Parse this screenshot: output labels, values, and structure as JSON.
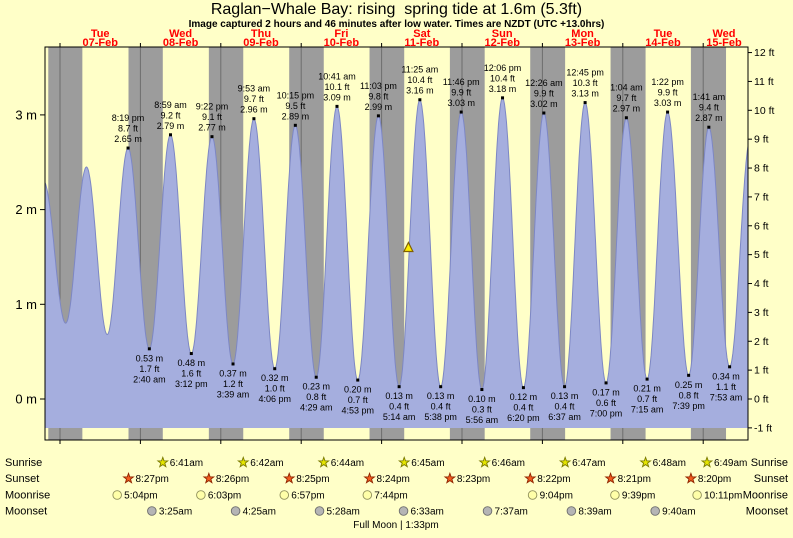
{
  "header": {
    "title": "Raglan−Whale Bay: rising  spring tide at 1.6m (5.3ft)",
    "subtitle": "Image captured 2 hours and 46 minutes after low water. Times are NZDT (UTC +13.0hrs)"
  },
  "colors": {
    "page_bg": "#ffffc8",
    "night_band": "#9c9c9c",
    "tide_fill": "#a5aede",
    "tide_edge": "#7d87c4",
    "day_label": "#ff0000",
    "plot_border": "#000000",
    "marker_fill": "#ffee00",
    "marker_stroke": "#806000"
  },
  "chart_data": {
    "type": "area",
    "title": "Raglan−Whale Bay tide height curve",
    "x_axis": {
      "days": [
        {
          "label": "Tue",
          "date": "07-Feb"
        },
        {
          "label": "Wed",
          "date": "08-Feb"
        },
        {
          "label": "Thu",
          "date": "09-Feb"
        },
        {
          "label": "Fri",
          "date": "10-Feb"
        },
        {
          "label": "Sat",
          "date": "11-Feb"
        },
        {
          "label": "Sun",
          "date": "12-Feb"
        },
        {
          "label": "Mon",
          "date": "13-Feb"
        },
        {
          "label": "Tue",
          "date": "14-Feb"
        },
        {
          "label": "Wed",
          "date": "15-Feb"
        }
      ]
    },
    "y_axis_left": {
      "unit": "m",
      "ticks": [
        0,
        1,
        2,
        3
      ]
    },
    "y_axis_right": {
      "unit": "ft",
      "ticks": [
        -1,
        0,
        1,
        2,
        3,
        4,
        5,
        6,
        7,
        8,
        9,
        10,
        11,
        12
      ]
    },
    "night_bands": [
      [
        -3.5,
        6.67
      ],
      [
        20.45,
        30.683
      ],
      [
        44.433,
        54.7
      ],
      [
        68.417,
        78.733
      ],
      [
        92.4,
        102.75
      ],
      [
        116.383,
        126.767
      ],
      [
        140.367,
        150.783
      ],
      [
        164.35,
        174.8
      ],
      [
        188.333,
        198.817
      ]
    ],
    "current_marker": {
      "t": 104,
      "height_m": 1.6
    },
    "tide_events": [
      {
        "kind": "high",
        "t": -4.9,
        "m": 2.3
      },
      {
        "kind": "low",
        "t": 1.7,
        "m": 0.8
      },
      {
        "kind": "high",
        "t": 7.9,
        "m": 2.45
      },
      {
        "kind": "low",
        "t": 14.1,
        "m": 0.68
      },
      {
        "kind": "high",
        "t": 20.317,
        "m": 2.65,
        "labels": [
          "8:19 pm",
          "8.7 ft",
          "2.65 m"
        ]
      },
      {
        "kind": "low",
        "t": 26.667,
        "m": 0.53,
        "labels": [
          "0.53 m",
          "1.7 ft",
          "2:40 am"
        ]
      },
      {
        "kind": "high",
        "t": 32.983,
        "m": 2.79,
        "labels": [
          "8:59 am",
          "9.2 ft",
          "2.79 m"
        ]
      },
      {
        "kind": "low",
        "t": 39.2,
        "m": 0.48,
        "labels": [
          "0.48 m",
          "1.6 ft",
          "3:12 pm"
        ]
      },
      {
        "kind": "high",
        "t": 45.367,
        "m": 2.77,
        "labels": [
          "9:22 pm",
          "9.1 ft",
          "2.77 m"
        ]
      },
      {
        "kind": "low",
        "t": 51.65,
        "m": 0.37,
        "labels": [
          "0.37 m",
          "1.2 ft",
          "3:39 am"
        ]
      },
      {
        "kind": "high",
        "t": 57.883,
        "m": 2.96,
        "labels": [
          "9:53 am",
          "9.7 ft",
          "2.96 m"
        ]
      },
      {
        "kind": "low",
        "t": 64.1,
        "m": 0.32,
        "labels": [
          "0.32 m",
          "1.0 ft",
          "4:06 pm"
        ]
      },
      {
        "kind": "high",
        "t": 70.25,
        "m": 2.89,
        "labels": [
          "10:15 pm",
          "9.5 ft",
          "2.89 m"
        ]
      },
      {
        "kind": "low",
        "t": 76.483,
        "m": 0.23,
        "labels": [
          "0.23 m",
          "0.8 ft",
          "4:29 am"
        ]
      },
      {
        "kind": "high",
        "t": 82.683,
        "m": 3.09,
        "labels": [
          "10:41 am",
          "10.1 ft",
          "3.09 m"
        ]
      },
      {
        "kind": "low",
        "t": 88.883,
        "m": 0.2,
        "labels": [
          "0.20 m",
          "0.7 ft",
          "4:53 pm"
        ]
      },
      {
        "kind": "high",
        "t": 95.05,
        "m": 2.99,
        "labels": [
          "11:03 pm",
          "9.8 ft",
          "2.99 m"
        ]
      },
      {
        "kind": "low",
        "t": 101.233,
        "m": 0.13,
        "labels": [
          "0.13 m",
          "0.4 ft",
          "5:14 am"
        ]
      },
      {
        "kind": "high",
        "t": 107.417,
        "m": 3.16,
        "labels": [
          "11:25 am",
          "10.4 ft",
          "3.16 m"
        ]
      },
      {
        "kind": "low",
        "t": 113.633,
        "m": 0.13,
        "labels": [
          "0.13 m",
          "0.4 ft",
          "5:38 pm"
        ]
      },
      {
        "kind": "high",
        "t": 119.767,
        "m": 3.03,
        "labels": [
          "11:46 pm",
          "9.9 ft",
          "3.03 m"
        ]
      },
      {
        "kind": "low",
        "t": 125.933,
        "m": 0.1,
        "labels": [
          "0.10 m",
          "0.3 ft",
          "5:56 am"
        ]
      },
      {
        "kind": "high",
        "t": 132.1,
        "m": 3.18,
        "labels": [
          "12:06 pm",
          "10.4 ft",
          "3.18 m"
        ]
      },
      {
        "kind": "low",
        "t": 138.333,
        "m": 0.12,
        "labels": [
          "0.12 m",
          "0.4 ft",
          "6:20 pm"
        ]
      },
      {
        "kind": "high",
        "t": 144.433,
        "m": 3.02,
        "labels": [
          "12:26 am",
          "9.9 ft",
          "3.02 m"
        ]
      },
      {
        "kind": "low",
        "t": 150.617,
        "m": 0.13,
        "labels": [
          "0.13 m",
          "0.4 ft",
          "6:37 am"
        ]
      },
      {
        "kind": "high",
        "t": 156.75,
        "m": 3.13,
        "labels": [
          "12:45 pm",
          "10.3 ft",
          "3.13 m"
        ]
      },
      {
        "kind": "low",
        "t": 163.0,
        "m": 0.17,
        "labels": [
          "0.17 m",
          "0.6 ft",
          "7:00 pm"
        ]
      },
      {
        "kind": "high",
        "t": 169.067,
        "m": 2.97,
        "labels": [
          "1:04 am",
          "9.7 ft",
          "2.97 m"
        ]
      },
      {
        "kind": "low",
        "t": 175.25,
        "m": 0.21,
        "labels": [
          "0.21 m",
          "0.7 ft",
          "7:15 am"
        ]
      },
      {
        "kind": "high",
        "t": 181.367,
        "m": 3.03,
        "labels": [
          "1:22 pm",
          "9.9 ft",
          "3.03 m"
        ]
      },
      {
        "kind": "low",
        "t": 187.65,
        "m": 0.25,
        "labels": [
          "0.25 m",
          "0.8 ft",
          "7:39 pm"
        ]
      },
      {
        "kind": "high",
        "t": 193.683,
        "m": 2.87,
        "labels": [
          "1:41 am",
          "9.4 ft",
          "2.87 m"
        ]
      },
      {
        "kind": "low",
        "t": 199.883,
        "m": 0.34,
        "labels": [
          "0.34 m",
          "1.1 ft",
          "7:53 am"
        ]
      },
      {
        "kind": "high",
        "t": 206.1,
        "m": 2.75
      }
    ]
  },
  "astro": {
    "rows": [
      {
        "id": "sunrise",
        "label": "Sunrise",
        "icon": "star",
        "fill": "#e6e600",
        "stroke": "#7a7a00",
        "entries": [
          {
            "t": 30.683,
            "time": "6:41am"
          },
          {
            "t": 54.7,
            "time": "6:42am"
          },
          {
            "t": 78.733,
            "time": "6:44am"
          },
          {
            "t": 102.75,
            "time": "6:45am"
          },
          {
            "t": 126.767,
            "time": "6:46am"
          },
          {
            "t": 150.783,
            "time": "6:47am"
          },
          {
            "t": 174.8,
            "time": "6:48am"
          },
          {
            "t": 198.817,
            "time": "6:49am"
          }
        ]
      },
      {
        "id": "sunset",
        "label": "Sunset",
        "icon": "star",
        "fill": "#f25c1e",
        "stroke": "#8f2500",
        "entries": [
          {
            "t": 20.45,
            "time": "8:27pm"
          },
          {
            "t": 44.433,
            "time": "8:26pm"
          },
          {
            "t": 68.417,
            "time": "8:25pm"
          },
          {
            "t": 92.4,
            "time": "8:24pm"
          },
          {
            "t": 116.383,
            "time": "8:23pm"
          },
          {
            "t": 140.367,
            "time": "8:22pm"
          },
          {
            "t": 164.35,
            "time": "8:21pm"
          },
          {
            "t": 188.333,
            "time": "8:20pm"
          }
        ]
      },
      {
        "id": "moonrise",
        "label": "Moonrise",
        "icon": "circle",
        "fill": "#ffffa8",
        "stroke": "#8f8f5a",
        "entries": [
          {
            "t": 17.067,
            "time": "5:04pm"
          },
          {
            "t": 42.05,
            "time": "6:03pm"
          },
          {
            "t": 66.95,
            "time": "6:57pm"
          },
          {
            "t": 91.733,
            "time": "7:44pm"
          },
          {
            "t": 141.067,
            "time": "9:04pm"
          },
          {
            "t": 165.65,
            "time": "9:39pm"
          },
          {
            "t": 190.183,
            "time": "10:11pm"
          }
        ]
      },
      {
        "id": "moonset",
        "label": "Moonset",
        "icon": "circle",
        "fill": "#b5b5b5",
        "stroke": "#6e6e6e",
        "entries": [
          {
            "t": 27.417,
            "time": "3:25am"
          },
          {
            "t": 52.417,
            "time": "4:25am"
          },
          {
            "t": 77.467,
            "time": "5:28am"
          },
          {
            "t": 102.55,
            "time": "6:33am"
          },
          {
            "t": 127.617,
            "time": "7:37am"
          },
          {
            "t": 152.65,
            "time": "8:39am"
          },
          {
            "t": 177.667,
            "time": "9:40am"
          }
        ]
      }
    ],
    "footer": "Full Moon | 1:33pm"
  }
}
